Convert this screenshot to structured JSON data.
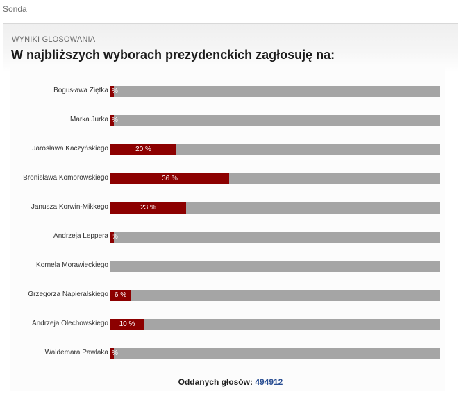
{
  "section": {
    "title": "Sonda"
  },
  "poll": {
    "results_heading": "WYNIKI GLOSOWANIA",
    "question": "W najbliższych wyborach prezydenckich zagłosuję na:",
    "votes_label": "Oddanych głosów:",
    "votes_count": "494912",
    "bar_color": "#8c0000",
    "track_color": "#a5a5a5",
    "accent_color": "#2b4f93",
    "candidates": [
      {
        "name": "Bogusława Ziętka",
        "percent": 1,
        "label": "%"
      },
      {
        "name": "Marka Jurka",
        "percent": 1,
        "label": "%"
      },
      {
        "name": "Jarosława Kaczyńskiego",
        "percent": 20,
        "label": "20 %"
      },
      {
        "name": "Bronisława Komorowskiego",
        "percent": 36,
        "label": "36 %"
      },
      {
        "name": "Janusza Korwin-Mikkego",
        "percent": 23,
        "label": "23 %"
      },
      {
        "name": "Andrzeja Leppera",
        "percent": 1,
        "label": "%"
      },
      {
        "name": "Kornela Morawieckiego",
        "percent": 0,
        "label": ""
      },
      {
        "name": "Grzegorza Napieralskiego",
        "percent": 6,
        "label": "6 %"
      },
      {
        "name": "Andrzeja Olechowskiego",
        "percent": 10,
        "label": "10 %"
      },
      {
        "name": "Waldemara Pawlaka",
        "percent": 1,
        "label": "%"
      }
    ]
  }
}
